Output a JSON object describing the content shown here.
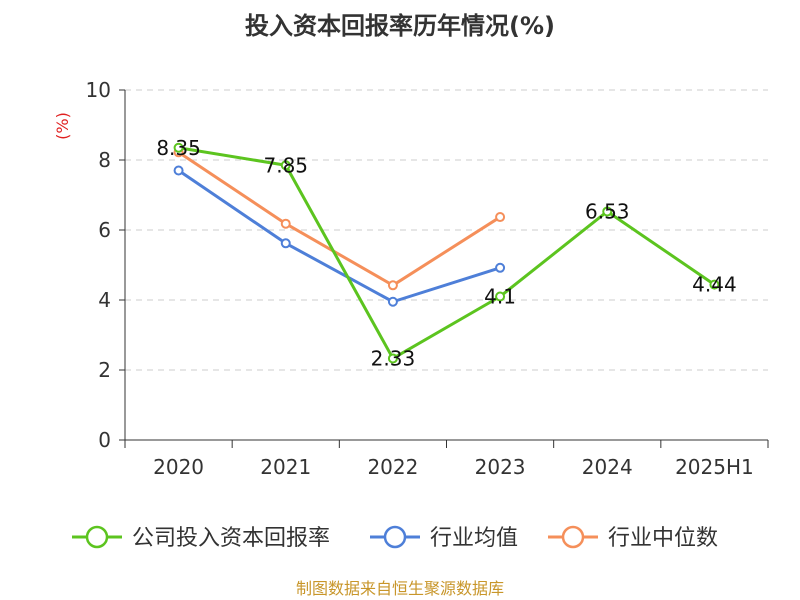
{
  "chart_data": {
    "type": "line",
    "title": "投入资本回报率历年情况(%)",
    "ylabel": "(%)",
    "xlabel": "",
    "ylim": [
      0,
      10
    ],
    "yticks": [
      "0",
      "2",
      "4",
      "6",
      "8",
      "10"
    ],
    "categories": [
      "2020",
      "2021",
      "2022",
      "2023",
      "2024",
      "2025H1"
    ],
    "grid": true,
    "legend_position": "bottom",
    "series": [
      {
        "name": "公司投入资本回报率",
        "color": "#5cc41f",
        "values": [
          8.35,
          7.85,
          2.33,
          4.1,
          6.53,
          4.44
        ],
        "labels": [
          "8.35",
          "7.85",
          "2.33",
          "4.1",
          "6.53",
          "4.44"
        ]
      },
      {
        "name": "行业均值",
        "color": "#4e7fd8",
        "values": [
          7.7,
          5.62,
          3.95,
          4.92,
          null,
          null
        ]
      },
      {
        "name": "行业中位数",
        "color": "#f58f5a",
        "values": [
          8.22,
          6.18,
          4.42,
          6.37,
          null,
          null
        ]
      }
    ]
  },
  "source": "制图数据来自恒生聚源数据库"
}
